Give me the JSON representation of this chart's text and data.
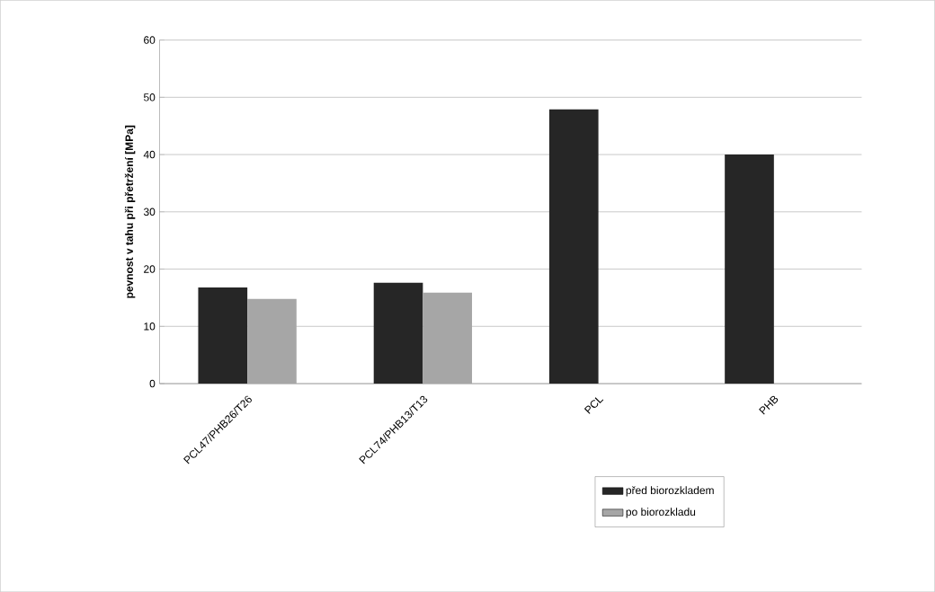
{
  "chart_data": {
    "type": "bar",
    "ylabel": "pevnost v tahu při přetržení [MPa]",
    "categories": [
      "PCL47/PHB26/T26",
      "PCL74/PHB13/T13",
      "PCL",
      "PHB"
    ],
    "series": [
      {
        "name": "před biorozkladem",
        "color": "#262626",
        "values": [
          16.8,
          17.6,
          47.9,
          40
        ]
      },
      {
        "name": "po biorozkladu",
        "color": "#a6a6a6",
        "values": [
          14.8,
          15.9,
          null,
          null
        ]
      }
    ],
    "ylim": [
      0,
      60
    ],
    "yticks": [
      0,
      10,
      20,
      30,
      40,
      50,
      60
    ],
    "grid": "y",
    "legend": "bottom"
  }
}
